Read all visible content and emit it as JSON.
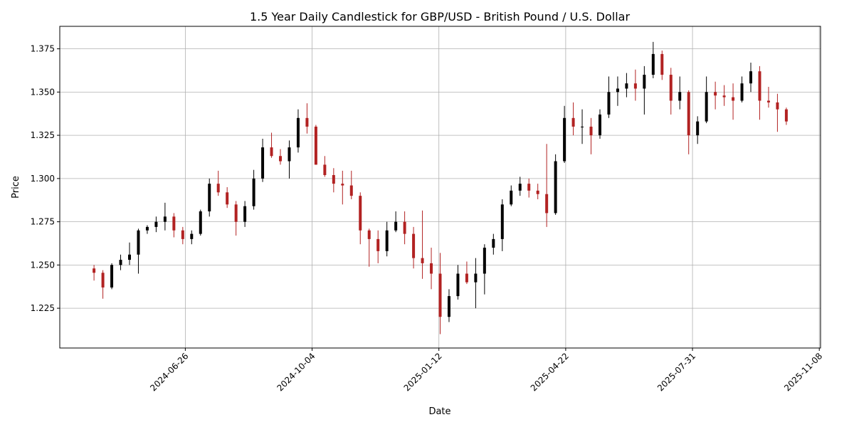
{
  "chart_data": {
    "type": "candlestick",
    "title": "1.5 Year Daily Candlestick for GBP/USD - British Pound / U.S. Dollar",
    "x_label": "Date",
    "y_label": "Price",
    "up_color": "#000000",
    "down_color": "#b22222",
    "grid": true,
    "xlim": [
      "2024-03-19",
      "2025-11-09"
    ],
    "xticks": [
      "2024-06-26",
      "2024-10-04",
      "2025-01-12",
      "2025-04-22",
      "2025-07-31",
      "2025-11-08"
    ],
    "ylim": [
      1.202,
      1.388
    ],
    "yticks": [
      1.225,
      {
        "value": 1.25,
        "label": "1.250"
      },
      1.275,
      {
        "value": 1.3,
        "label": "1.300"
      },
      1.325,
      {
        "value": 1.35,
        "label": "1.350"
      },
      1.375
    ],
    "x": [
      "2024-04-15",
      "2024-04-22",
      "2024-04-29",
      "2024-05-06",
      "2024-05-13",
      "2024-05-20",
      "2024-05-27",
      "2024-06-03",
      "2024-06-10",
      "2024-06-17",
      "2024-06-24",
      "2024-07-01",
      "2024-07-08",
      "2024-07-15",
      "2024-07-22",
      "2024-07-29",
      "2024-08-05",
      "2024-08-12",
      "2024-08-19",
      "2024-08-26",
      "2024-09-02",
      "2024-09-09",
      "2024-09-16",
      "2024-09-23",
      "2024-09-30",
      "2024-10-07",
      "2024-10-14",
      "2024-10-21",
      "2024-10-28",
      "2024-11-04",
      "2024-11-11",
      "2024-11-18",
      "2024-11-25",
      "2024-12-02",
      "2024-12-09",
      "2024-12-16",
      "2024-12-23",
      "2024-12-30",
      "2025-01-06",
      "2025-01-13",
      "2025-01-20",
      "2025-01-27",
      "2025-02-03",
      "2025-02-10",
      "2025-02-17",
      "2025-02-24",
      "2025-03-03",
      "2025-03-10",
      "2025-03-17",
      "2025-03-24",
      "2025-03-31",
      "2025-04-07",
      "2025-04-14",
      "2025-04-21",
      "2025-04-28",
      "2025-05-05",
      "2025-05-12",
      "2025-05-19",
      "2025-05-26",
      "2025-06-02",
      "2025-06-09",
      "2025-06-16",
      "2025-06-23",
      "2025-06-30",
      "2025-07-07",
      "2025-07-14",
      "2025-07-21",
      "2025-07-28",
      "2025-08-04",
      "2025-08-11",
      "2025-08-18",
      "2025-08-25",
      "2025-09-01",
      "2025-09-08",
      "2025-09-15",
      "2025-09-22",
      "2025-09-29",
      "2025-10-06",
      "2025-10-13"
    ],
    "open": [
      1.248,
      1.2455,
      1.237,
      1.25,
      1.253,
      1.256,
      1.27,
      1.272,
      1.275,
      1.278,
      1.27,
      1.265,
      1.268,
      1.281,
      1.297,
      1.292,
      1.285,
      1.275,
      1.284,
      1.3,
      1.318,
      1.313,
      1.31,
      1.318,
      1.335,
      1.33,
      1.308,
      1.302,
      1.297,
      1.296,
      1.29,
      1.27,
      1.265,
      1.258,
      1.27,
      1.275,
      1.268,
      1.254,
      1.251,
      1.245,
      1.22,
      1.232,
      1.245,
      1.24,
      1.245,
      1.26,
      1.265,
      1.285,
      1.293,
      1.297,
      1.293,
      1.291,
      1.28,
      1.31,
      1.335,
      1.33,
      1.33,
      1.325,
      1.337,
      1.35,
      1.352,
      1.355,
      1.352,
      1.36,
      1.372,
      1.36,
      1.345,
      1.35,
      1.325,
      1.333,
      1.35,
      1.348,
      1.347,
      1.345,
      1.355,
      1.362,
      1.345,
      1.344,
      1.34
    ],
    "high": [
      1.25,
      1.247,
      1.251,
      1.256,
      1.263,
      1.271,
      1.273,
      1.278,
      1.286,
      1.28,
      1.272,
      1.27,
      1.282,
      1.3,
      1.3045,
      1.295,
      1.287,
      1.287,
      1.305,
      1.323,
      1.3265,
      1.317,
      1.322,
      1.34,
      1.3435,
      1.331,
      1.313,
      1.306,
      1.3045,
      1.3045,
      1.292,
      1.271,
      1.27,
      1.275,
      1.281,
      1.281,
      1.272,
      1.2815,
      1.26,
      1.257,
      1.236,
      1.25,
      1.252,
      1.254,
      1.262,
      1.268,
      1.288,
      1.296,
      1.301,
      1.3,
      1.297,
      1.32,
      1.314,
      1.342,
      1.344,
      1.34,
      1.335,
      1.34,
      1.359,
      1.359,
      1.361,
      1.363,
      1.365,
      1.379,
      1.374,
      1.364,
      1.359,
      1.351,
      1.336,
      1.359,
      1.356,
      1.354,
      1.355,
      1.359,
      1.367,
      1.365,
      1.353,
      1.349,
      1.341
    ],
    "low": [
      1.241,
      1.2305,
      1.236,
      1.247,
      1.25,
      1.245,
      1.268,
      1.269,
      1.27,
      1.266,
      1.262,
      1.262,
      1.267,
      1.278,
      1.29,
      1.283,
      1.267,
      1.272,
      1.282,
      1.298,
      1.312,
      1.308,
      1.3,
      1.315,
      1.326,
      1.308,
      1.301,
      1.292,
      1.285,
      1.288,
      1.262,
      1.249,
      1.251,
      1.255,
      1.269,
      1.262,
      1.248,
      1.242,
      1.236,
      1.21,
      1.217,
      1.23,
      1.239,
      1.225,
      1.233,
      1.256,
      1.258,
      1.284,
      1.29,
      1.289,
      1.288,
      1.272,
      1.279,
      1.309,
      1.325,
      1.32,
      1.314,
      1.323,
      1.335,
      1.342,
      1.347,
      1.345,
      1.337,
      1.358,
      1.357,
      1.337,
      1.34,
      1.314,
      1.32,
      1.332,
      1.34,
      1.342,
      1.334,
      1.344,
      1.35,
      1.334,
      1.341,
      1.327,
      1.331
    ],
    "close": [
      1.2455,
      1.237,
      1.25,
      1.253,
      1.256,
      1.27,
      1.272,
      1.275,
      1.278,
      1.27,
      1.265,
      1.268,
      1.281,
      1.297,
      1.292,
      1.285,
      1.275,
      1.284,
      1.3,
      1.318,
      1.313,
      1.31,
      1.318,
      1.335,
      1.33,
      1.308,
      1.302,
      1.297,
      1.296,
      1.29,
      1.27,
      1.265,
      1.258,
      1.27,
      1.275,
      1.268,
      1.254,
      1.251,
      1.245,
      1.22,
      1.232,
      1.245,
      1.24,
      1.245,
      1.26,
      1.265,
      1.285,
      1.293,
      1.297,
      1.293,
      1.291,
      1.28,
      1.31,
      1.335,
      1.33,
      1.33,
      1.325,
      1.337,
      1.35,
      1.352,
      1.355,
      1.352,
      1.36,
      1.372,
      1.36,
      1.345,
      1.35,
      1.325,
      1.333,
      1.35,
      1.348,
      1.347,
      1.345,
      1.355,
      1.362,
      1.345,
      1.344,
      1.34,
      1.333
    ]
  }
}
